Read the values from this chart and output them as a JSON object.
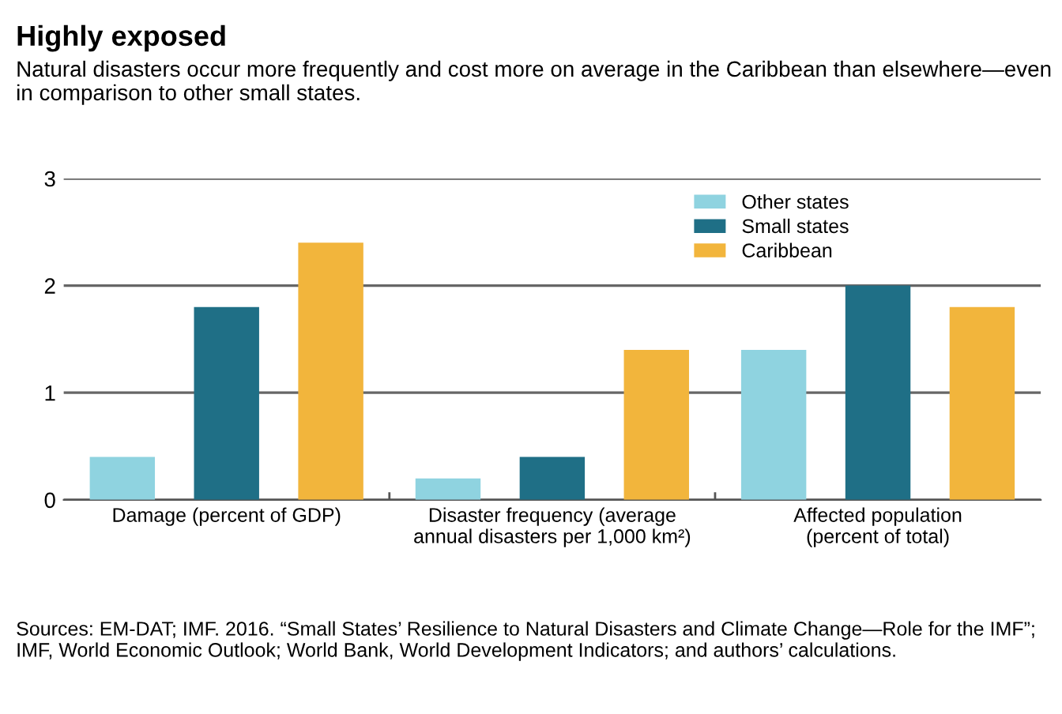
{
  "chart_data": {
    "type": "bar",
    "title": "Highly exposed",
    "subtitle": "Natural disasters occur more frequently and cost more on average in the Caribbean than elsewhere—even in comparison to other small states.",
    "categories": [
      "Damage (percent of GDP)",
      "Disaster frequency (average\nannual disasters per 1,000 km²)",
      "Affected population\n(percent of total)"
    ],
    "series": [
      {
        "name": "Other states",
        "color": "#8fd3e0",
        "values": [
          0.4,
          0.2,
          1.4
        ]
      },
      {
        "name": "Small states",
        "color": "#1f6f86",
        "values": [
          1.8,
          0.4,
          2.0
        ]
      },
      {
        "name": "Caribbean",
        "color": "#f2b53c",
        "values": [
          2.4,
          1.4,
          1.8
        ]
      }
    ],
    "ylim": [
      0,
      3
    ],
    "yticks": [
      0,
      1,
      2,
      3
    ],
    "grid": "y",
    "legend": "top right",
    "annotations": [
      "Sources: EM-DAT; IMF. 2016. “Small States’ Resilience to Natural Disasters and Climate Change—Role for the IMF”; IMF, World Economic Outlook; World Bank, World Development Indicators; and authors’ calculations."
    ]
  }
}
